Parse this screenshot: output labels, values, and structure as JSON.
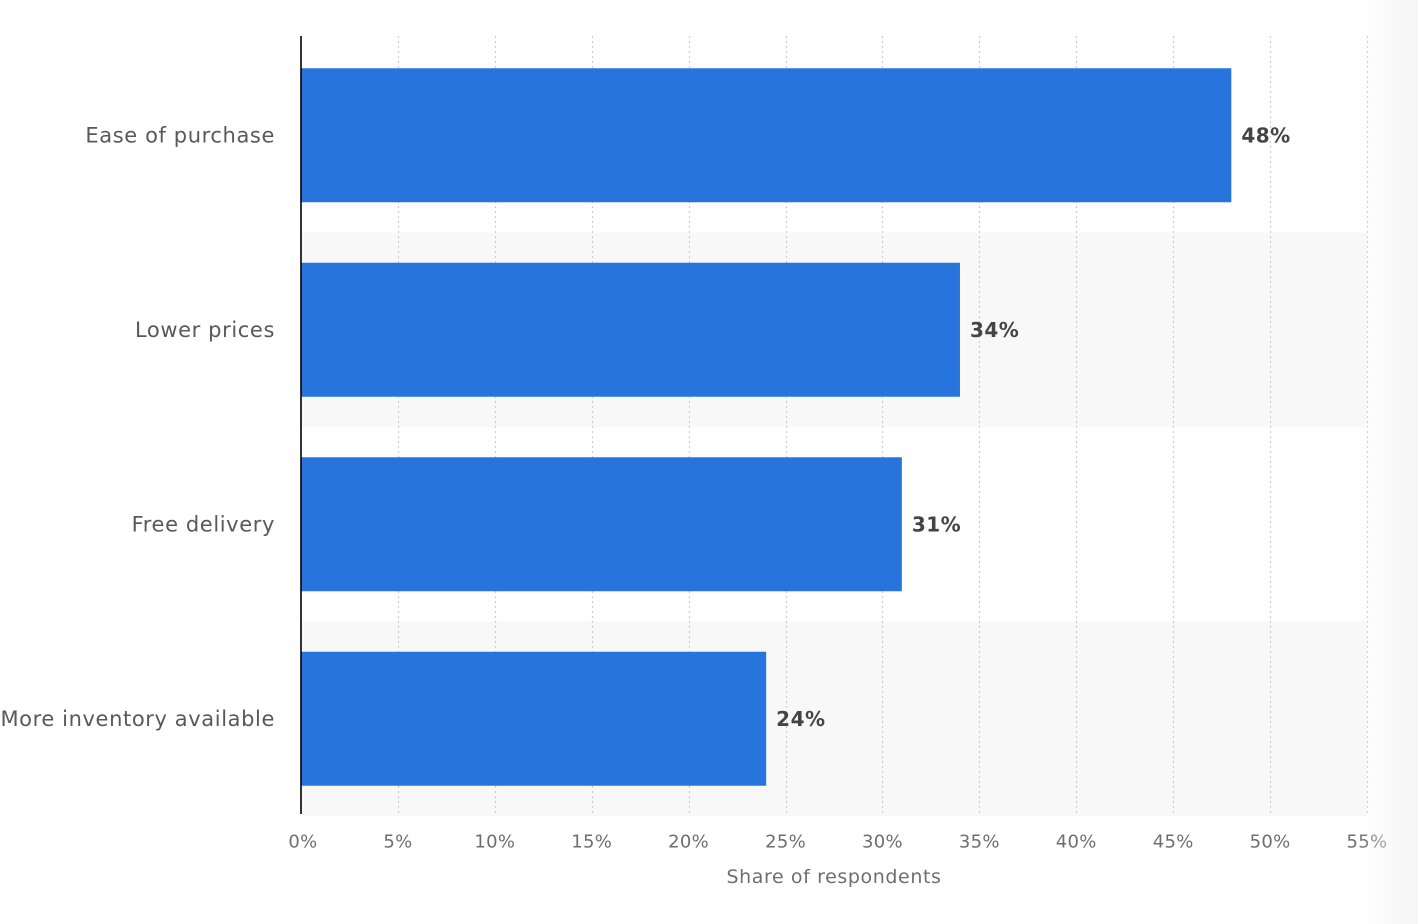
{
  "chart_data": {
    "type": "bar",
    "orientation": "horizontal",
    "categories": [
      "Ease of purchase",
      "Lower prices",
      "Free delivery",
      "More inventory available"
    ],
    "values": [
      48,
      34,
      31,
      24
    ],
    "value_labels": [
      "48%",
      "34%",
      "31%",
      "24%"
    ],
    "xlabel": "Share of respondents",
    "ylabel": "",
    "xlim": [
      0,
      55
    ],
    "xticks": [
      0,
      5,
      10,
      15,
      20,
      25,
      30,
      35,
      40,
      45,
      50,
      55
    ],
    "xtick_labels": [
      "0%",
      "5%",
      "10%",
      "15%",
      "20%",
      "25%",
      "30%",
      "35%",
      "40%",
      "45%",
      "50%",
      "55%"
    ],
    "grid": true,
    "bar_color": "#2775dc",
    "alternate_row_color": "#f8f8f8",
    "grid_color": "#cccccc"
  }
}
